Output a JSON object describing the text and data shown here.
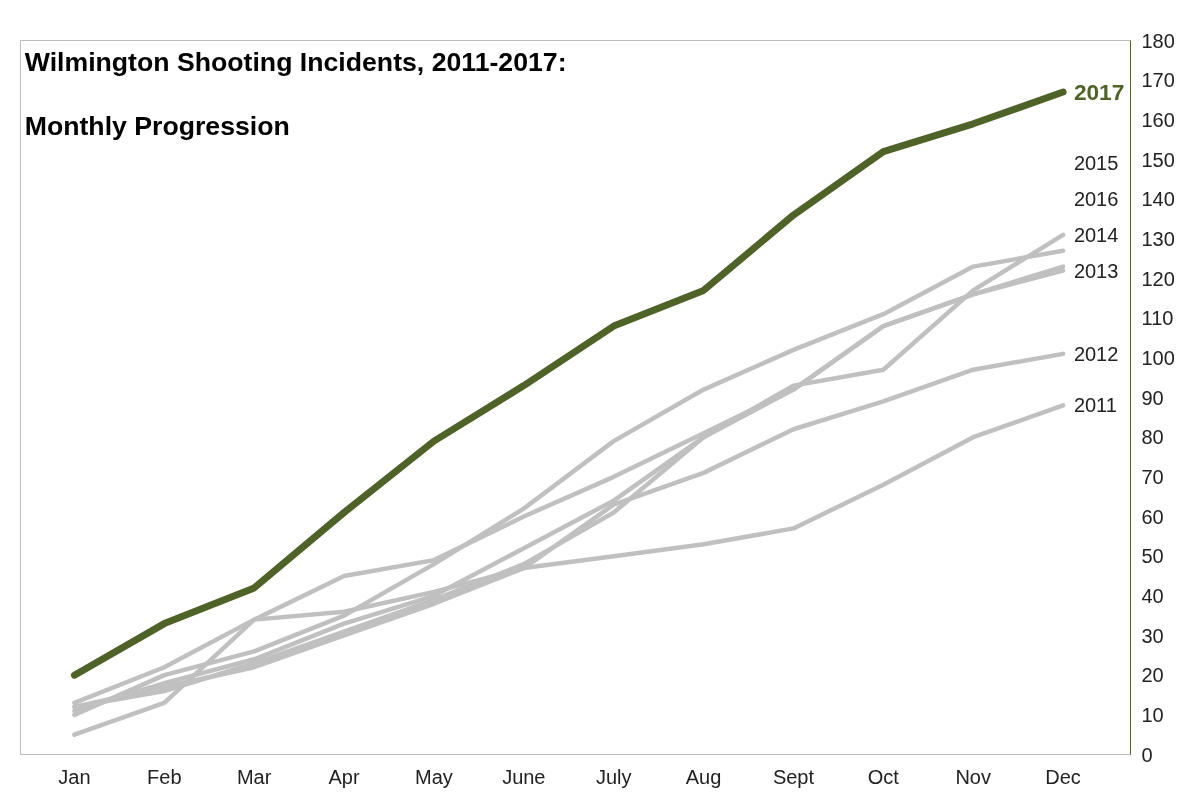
{
  "chart_data": {
    "type": "line",
    "title": "Wilmington Shooting Incidents, 2011-2017:",
    "subtitle": "Monthly Progression",
    "categories": [
      "Jan",
      "Feb",
      "Mar",
      "Apr",
      "May",
      "June",
      "July",
      "Aug",
      "Sept",
      "Oct",
      "Nov",
      "Dec"
    ],
    "ylim": [
      0,
      180
    ],
    "yticks": [
      0,
      10,
      20,
      30,
      40,
      50,
      60,
      70,
      80,
      90,
      100,
      110,
      120,
      130,
      140,
      150,
      160,
      170,
      180
    ],
    "grid": false,
    "marker": "none",
    "line_style": "solid",
    "series": [
      {
        "name": "2011",
        "color": "#c0c0c0",
        "values": [
          5,
          13,
          34,
          36,
          41,
          47,
          50,
          53,
          57,
          68,
          80,
          88
        ]
      },
      {
        "name": "2012",
        "color": "#c0c0c0",
        "values": [
          12,
          17,
          22,
          30,
          38,
          47,
          63,
          71,
          82,
          89,
          97,
          101
        ]
      },
      {
        "name": "2013",
        "color": "#c0c0c0",
        "values": [
          11,
          18,
          24,
          33,
          40,
          52,
          64,
          80,
          92,
          108,
          116,
          122
        ]
      },
      {
        "name": "2014",
        "color": "#c0c0c0",
        "values": [
          13,
          22,
          34,
          45,
          49,
          60,
          70,
          81,
          92,
          108,
          116,
          123
        ]
      },
      {
        "name": "2015",
        "color": "#c0c0c0",
        "values": [
          12,
          16,
          23,
          31,
          39,
          48,
          61,
          80,
          93,
          97,
          117,
          131
        ]
      },
      {
        "name": "2016",
        "color": "#c0c0c0",
        "values": [
          10,
          20,
          26,
          35,
          48,
          62,
          79,
          92,
          102,
          111,
          123,
          127
        ]
      },
      {
        "name": "2017",
        "color": "#4f6228",
        "values": [
          20,
          33,
          42,
          61,
          79,
          93,
          108,
          117,
          136,
          152,
          159,
          167
        ]
      }
    ]
  }
}
